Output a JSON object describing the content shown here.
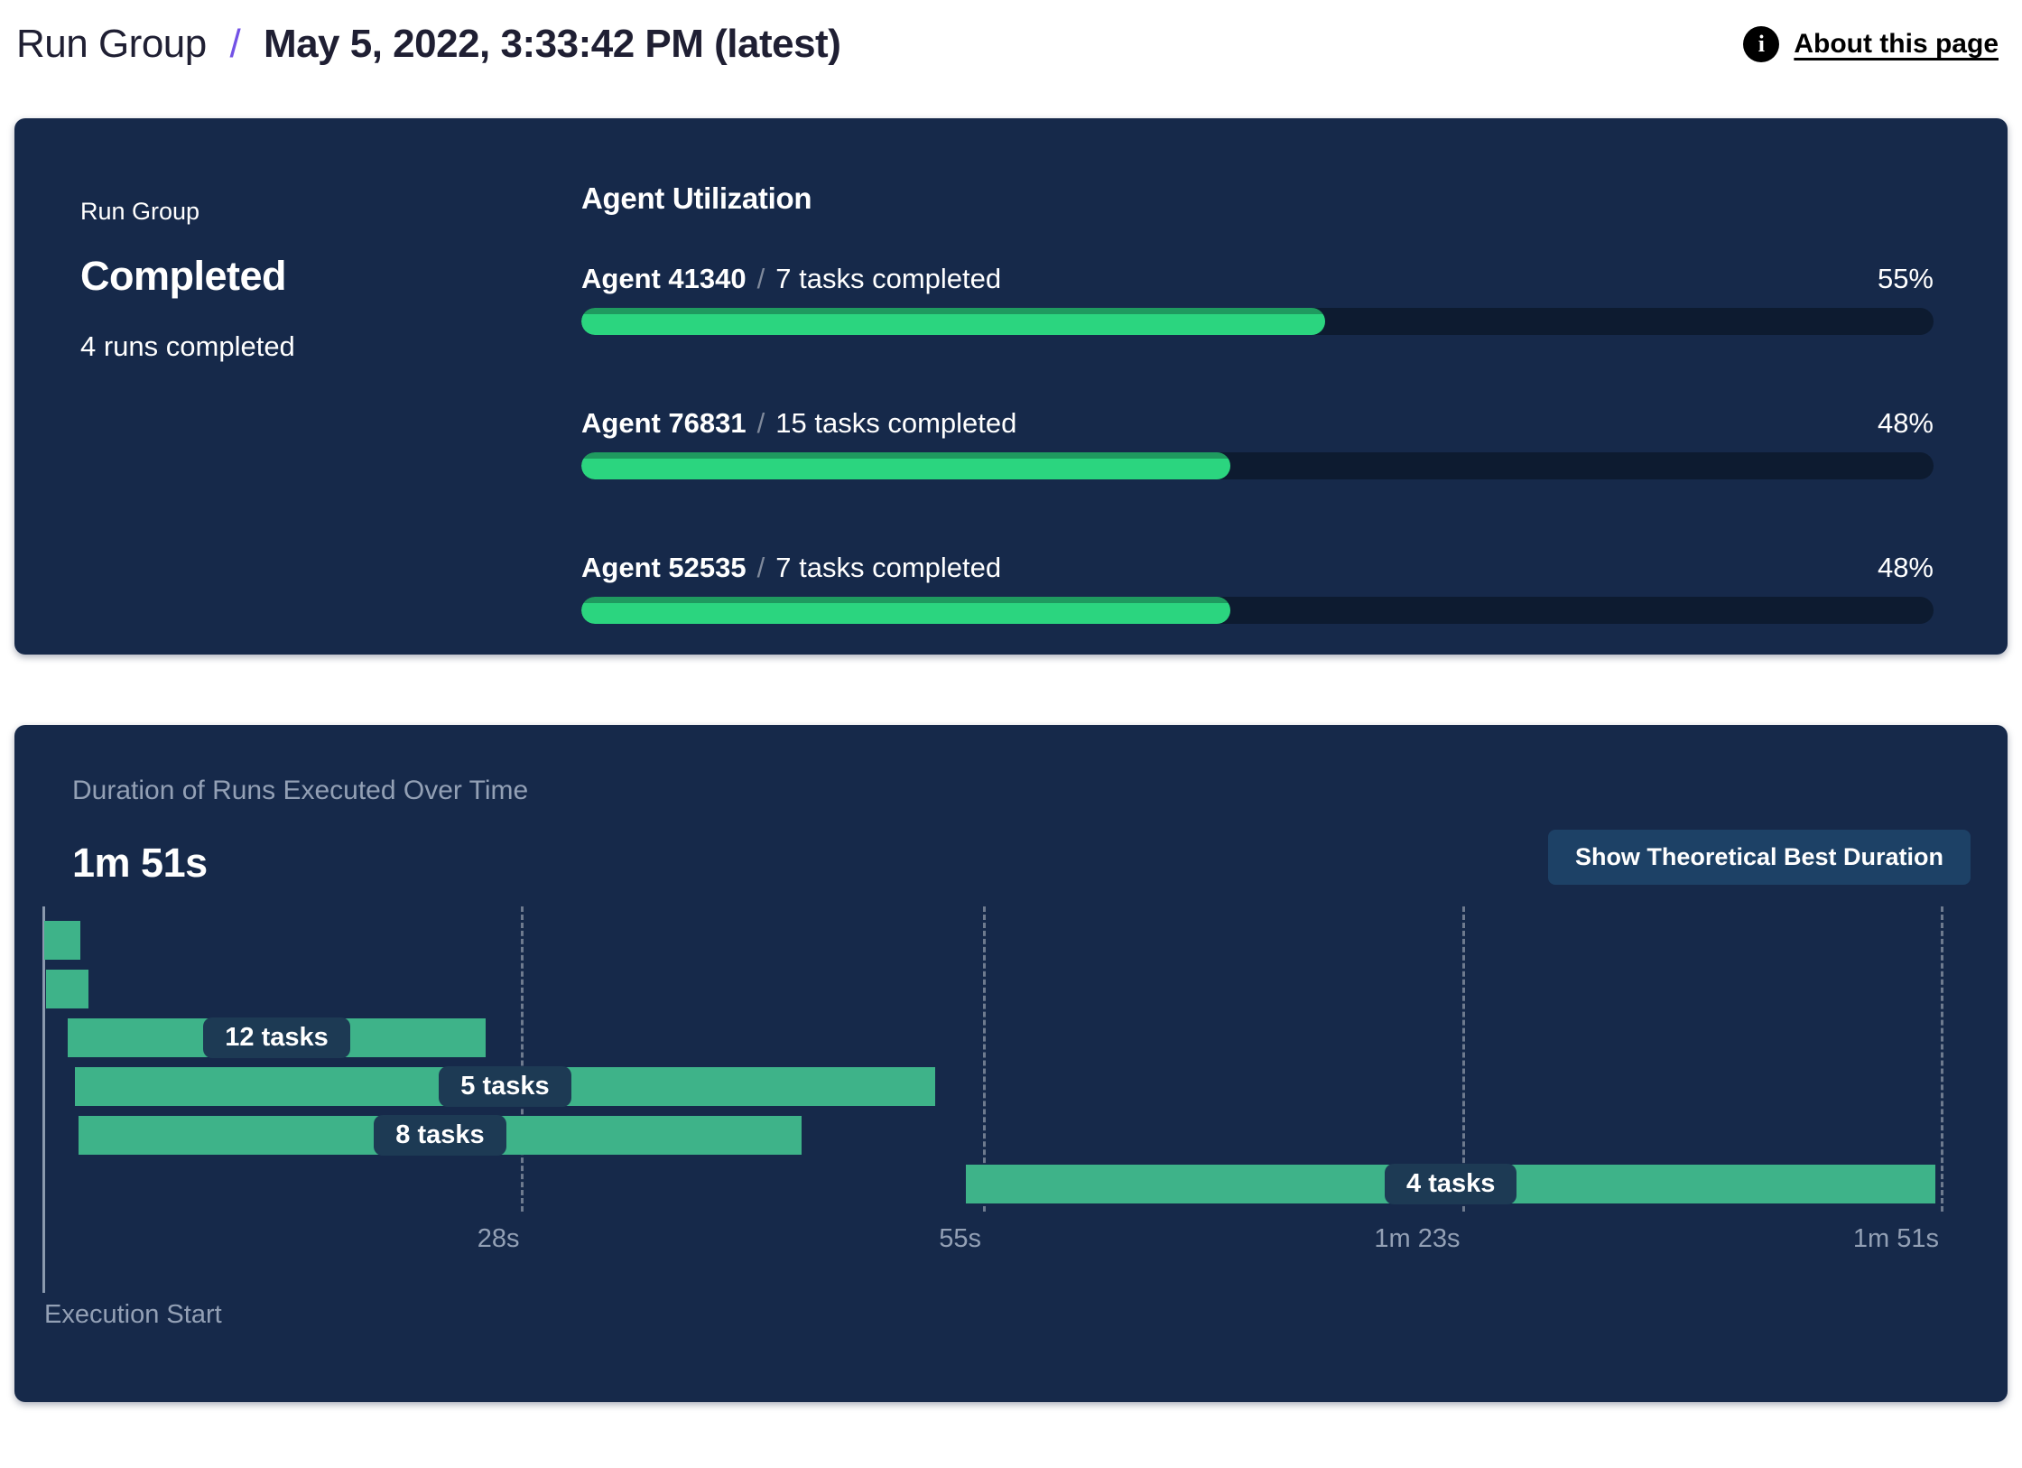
{
  "header": {
    "breadcrumb_root": "Run Group",
    "breadcrumb_separator": "/",
    "title": "May 5, 2022, 3:33:42 PM (latest)",
    "about_link": "About this page",
    "info_icon_glyph": "i"
  },
  "colors": {
    "panel_bg": "#16294a",
    "progress_track": "#0d1b30",
    "progress_green": "#2bd57f",
    "progress_green_dark": "#1f9a5f",
    "gantt_bar_teal": "#3eb389",
    "pill_bg": "#1d3a54",
    "accent_purple": "#7352e6",
    "muted_text": "#93a0b5",
    "button_bg": "#1d4166",
    "axis_line": "#9fadbf"
  },
  "status_card": {
    "label": "Run Group",
    "status": "Completed",
    "detail": "4 runs completed"
  },
  "utilization": {
    "title": "Agent Utilization",
    "separator": "/",
    "agents": [
      {
        "name": "Agent 41340",
        "tasks": "7 tasks completed",
        "percent_label": "55%",
        "percent": 55
      },
      {
        "name": "Agent 76831",
        "tasks": "15 tasks completed",
        "percent_label": "48%",
        "percent": 48
      },
      {
        "name": "Agent 52535",
        "tasks": "7 tasks completed",
        "percent_label": "48%",
        "percent": 48
      }
    ]
  },
  "duration_panel": {
    "subtitle": "Duration of Runs Executed Over Time",
    "total_duration": "1m 51s",
    "button_label": "Show Theoretical Best Duration",
    "x_origin_label": "Execution Start"
  },
  "chart_data": {
    "type": "gantt",
    "title": "Duration of Runs Executed Over Time",
    "total_duration_label": "1m 51s",
    "time_axis_max_s": 111,
    "grid": "dashed-vertical",
    "ticks": [
      {
        "s": 28,
        "label": "28s"
      },
      {
        "s": 55,
        "label": "55s"
      },
      {
        "s": 83,
        "label": "1m 23s"
      },
      {
        "s": 111,
        "label": "1m 51s"
      }
    ],
    "runs": [
      {
        "start_s": 0.1,
        "end_s": 2.2,
        "label": ""
      },
      {
        "start_s": 0.2,
        "end_s": 2.7,
        "label": ""
      },
      {
        "start_s": 1.5,
        "end_s": 25.9,
        "label": "12 tasks"
      },
      {
        "start_s": 1.9,
        "end_s": 52.2,
        "label": "5 tasks"
      },
      {
        "start_s": 2.1,
        "end_s": 44.4,
        "label": "8 tasks"
      },
      {
        "start_s": 54.0,
        "end_s": 110.7,
        "label": "4 tasks"
      }
    ]
  }
}
